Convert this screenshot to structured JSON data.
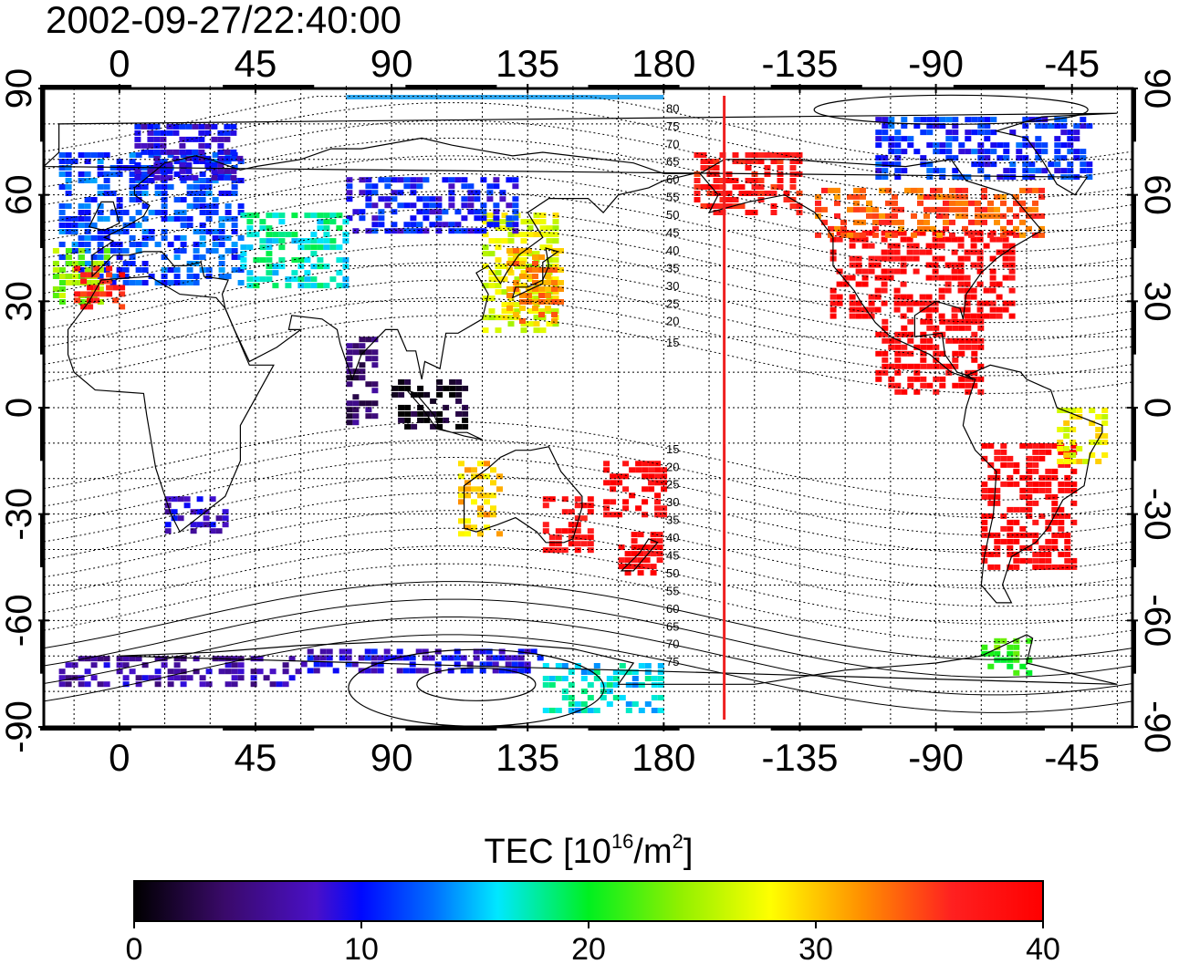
{
  "timestamp": "2002-09-27/22:40:00",
  "longitude_ticks": [
    "0",
    "45",
    "90",
    "135",
    "180",
    "-135",
    "-90",
    "-45"
  ],
  "latitude_ticks": [
    "90",
    "60",
    "30",
    "0",
    "-30",
    "-60",
    "-90"
  ],
  "magnetic_lat_labels_north": [
    "80",
    "75",
    "70",
    "65",
    "60",
    "55",
    "50",
    "45",
    "40",
    "35",
    "30",
    "25",
    "20",
    "15"
  ],
  "magnetic_lat_labels_south": [
    "15",
    "20",
    "25",
    "30",
    "35",
    "40",
    "45",
    "50",
    "55",
    "60",
    "65",
    "70",
    "75"
  ],
  "terminator_longitude": -160,
  "colorbar": {
    "title_prefix": "TEC  [10",
    "title_sup1": "16",
    "title_mid": "/m",
    "title_sup2": "2",
    "title_suffix": "]",
    "ticks": [
      "0",
      "10",
      "20",
      "30",
      "40"
    ],
    "min": 0,
    "max": 40
  },
  "colors": {
    "terminator": "#ee2020",
    "top_band": "#30a8f0"
  },
  "tec_regions": [
    {
      "name": "europe",
      "lon": [
        -20,
        40
      ],
      "lat": [
        35,
        72
      ],
      "tec": 12
    },
    {
      "name": "europe-west",
      "lon": [
        -22,
        -5
      ],
      "lat": [
        30,
        45
      ],
      "tec": 24
    },
    {
      "name": "iberia",
      "lon": [
        -15,
        0
      ],
      "lat": [
        28,
        40
      ],
      "tec": 37
    },
    {
      "name": "scandinavia",
      "lon": [
        5,
        40
      ],
      "lat": [
        65,
        80
      ],
      "tec": 9
    },
    {
      "name": "east-asia",
      "lon": [
        120,
        145
      ],
      "lat": [
        22,
        55
      ],
      "tec": 27
    },
    {
      "name": "japan",
      "lon": [
        128,
        145
      ],
      "lat": [
        25,
        45
      ],
      "tec": 32
    },
    {
      "name": "siberia",
      "lon": [
        75,
        130
      ],
      "lat": [
        50,
        65
      ],
      "tec": 10
    },
    {
      "name": "indonesia",
      "lon": [
        90,
        115
      ],
      "lat": [
        -6,
        8
      ],
      "tec": 1
    },
    {
      "name": "india-strip",
      "lon": [
        75,
        85
      ],
      "lat": [
        -5,
        20
      ],
      "tec": 4
    },
    {
      "name": "usa",
      "lon": [
        -125,
        -65
      ],
      "lat": [
        25,
        50
      ],
      "tec": 39
    },
    {
      "name": "canada",
      "lon": [
        -130,
        -55
      ],
      "lat": [
        48,
        62
      ],
      "tec": 34
    },
    {
      "name": "arctic-canada",
      "lon": [
        -110,
        -40
      ],
      "lat": [
        65,
        82
      ],
      "tec": 11
    },
    {
      "name": "alaska",
      "lon": [
        -170,
        -135
      ],
      "lat": [
        55,
        72
      ],
      "tec": 37
    },
    {
      "name": "central-america",
      "lon": [
        -110,
        -75
      ],
      "lat": [
        5,
        25
      ],
      "tec": 39
    },
    {
      "name": "south-america",
      "lon": [
        -75,
        -45
      ],
      "lat": [
        -45,
        -10
      ],
      "tec": 39
    },
    {
      "name": "brazil",
      "lon": [
        -50,
        -35
      ],
      "lat": [
        -15,
        0
      ],
      "tec": 28
    },
    {
      "name": "australia-east",
      "lon": [
        140,
        155
      ],
      "lat": [
        -40,
        -25
      ],
      "tec": 38
    },
    {
      "name": "australia-west",
      "lon": [
        112,
        125
      ],
      "lat": [
        -35,
        -15
      ],
      "tec": 30
    },
    {
      "name": "new-zealand",
      "lon": [
        165,
        178
      ],
      "lat": [
        -47,
        -35
      ],
      "tec": 39
    },
    {
      "name": "pacific-south",
      "lon": [
        160,
        180
      ],
      "lat": [
        -30,
        -15
      ],
      "tec": 39
    },
    {
      "name": "south-africa",
      "lon": [
        15,
        35
      ],
      "lat": [
        -35,
        -25
      ],
      "tec": 8
    },
    {
      "name": "antarctica-west",
      "lon": [
        -20,
        60
      ],
      "lat": [
        -78,
        -70
      ],
      "tec": 7
    },
    {
      "name": "antarctica-east",
      "lon": [
        60,
        140
      ],
      "lat": [
        -75,
        -68
      ],
      "tec": 9
    },
    {
      "name": "antarctica-pacific",
      "lon": [
        140,
        180
      ],
      "lat": [
        -85,
        -72
      ],
      "tec": 16
    },
    {
      "name": "patagonia",
      "lon": [
        -75,
        -60
      ],
      "lat": [
        -75,
        -65
      ],
      "tec": 22
    },
    {
      "name": "mid-asia",
      "lon": [
        40,
        75
      ],
      "lat": [
        35,
        55
      ],
      "tec": 17
    }
  ]
}
